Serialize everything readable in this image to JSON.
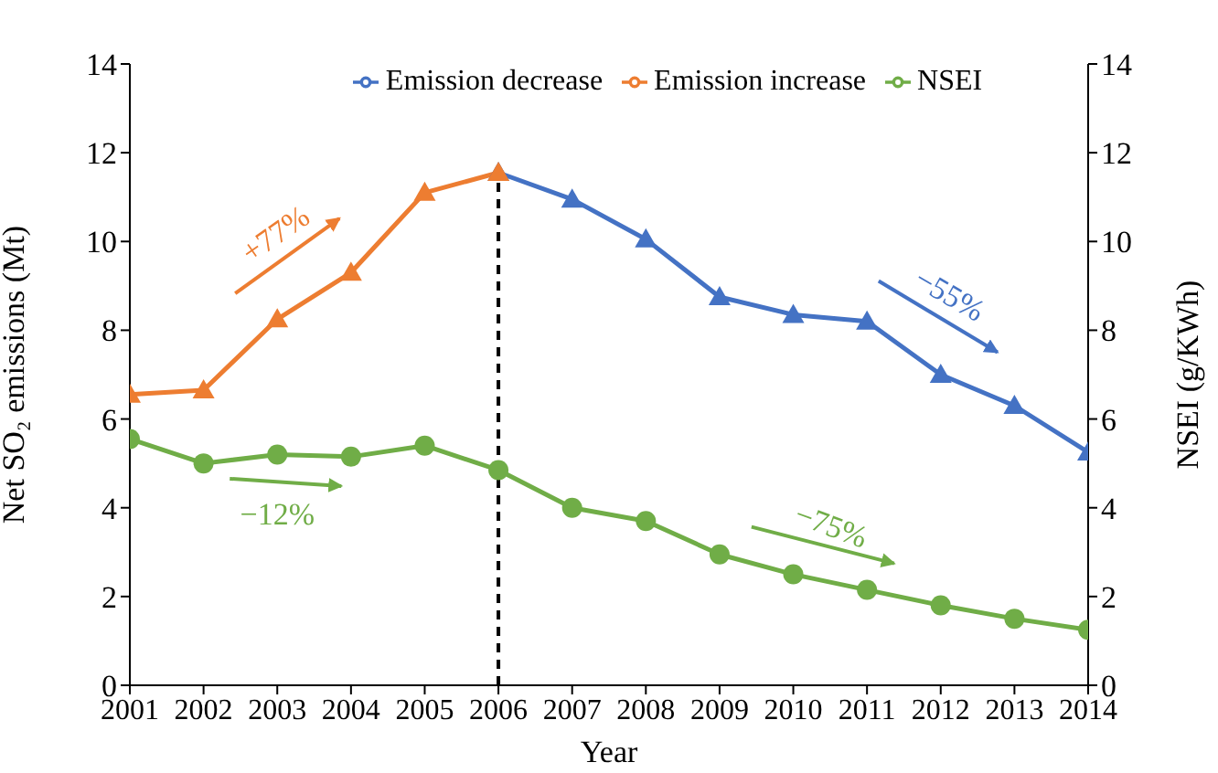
{
  "chart_data": {
    "type": "line",
    "xlabel": "Year",
    "ylabel": "Net SO₂ emissions (Mt)",
    "y2label": "NSEI (g/KWh)",
    "x": [
      2001,
      2002,
      2003,
      2004,
      2005,
      2006,
      2007,
      2008,
      2009,
      2010,
      2011,
      2012,
      2013,
      2014
    ],
    "xlim": [
      2001,
      2014
    ],
    "xticks": [
      2001,
      2002,
      2003,
      2004,
      2005,
      2006,
      2007,
      2008,
      2009,
      2010,
      2011,
      2012,
      2013,
      2014
    ],
    "ylim": [
      0,
      14
    ],
    "yticks": [
      0,
      2,
      4,
      6,
      8,
      10,
      12,
      14
    ],
    "y2lim": [
      0,
      14
    ],
    "y2ticks": [
      0,
      2,
      4,
      6,
      8,
      10,
      12,
      14
    ],
    "series": [
      {
        "name": "Emission decrease",
        "color": "#4472c4",
        "marker": "triangle",
        "values": [
          null,
          null,
          null,
          null,
          null,
          11.55,
          10.95,
          10.05,
          8.75,
          8.35,
          8.2,
          7.0,
          6.3,
          5.25
        ]
      },
      {
        "name": "Emission increase",
        "color": "#ed7d31",
        "marker": "triangle",
        "values": [
          6.55,
          6.65,
          8.25,
          9.3,
          11.1,
          11.55,
          null,
          null,
          null,
          null,
          null,
          null,
          null,
          null
        ]
      },
      {
        "name": "NSEI",
        "color": "#70ad47",
        "marker": "circle",
        "axis": "y2",
        "values": [
          5.55,
          5.0,
          5.2,
          5.15,
          5.4,
          4.85,
          4.0,
          3.7,
          2.95,
          2.5,
          2.15,
          1.8,
          1.5,
          1.25
        ]
      }
    ],
    "ref_lines": [
      {
        "axis": "x",
        "value": 2006,
        "color": "#000000",
        "line_style": "dashed"
      }
    ],
    "annotations": [
      "+77%",
      "−12%",
      "−55%",
      "−75%"
    ],
    "legend": "top",
    "grid": false
  }
}
